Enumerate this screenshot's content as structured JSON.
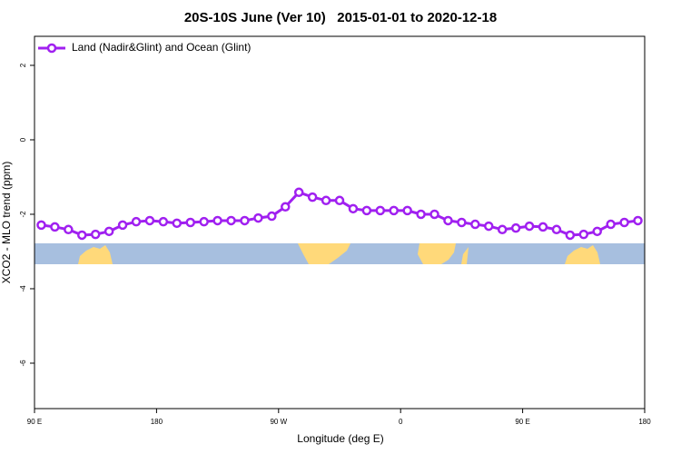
{
  "chart_data": {
    "type": "line",
    "title": "20S-10S June (Ver 10)   2015-01-01 to 2020-12-18",
    "x_label": "Longitude (deg E)",
    "y_label": "XCO2 - MLO trend (ppm)",
    "x": [
      95,
      105,
      115,
      125,
      135,
      145,
      155,
      165,
      175,
      185,
      195,
      205,
      215,
      225,
      235,
      245,
      255,
      265,
      275,
      285,
      295,
      305,
      315,
      325,
      335,
      345,
      355,
      365,
      375,
      385,
      395,
      405,
      415,
      425,
      435,
      445,
      455,
      465,
      475,
      485,
      495,
      505,
      515,
      525,
      535
    ],
    "series": [
      {
        "name": "Land (Nadir&Glint) and Ocean (Glint)",
        "color": "#a020f0",
        "values": [
          -2.29,
          -2.34,
          -2.41,
          -2.56,
          -2.54,
          -2.46,
          -2.29,
          -2.2,
          -2.17,
          -2.2,
          -2.24,
          -2.22,
          -2.2,
          -2.17,
          -2.17,
          -2.17,
          -2.1,
          -2.05,
          -1.8,
          -1.41,
          -1.54,
          -1.63,
          -1.63,
          -1.85,
          -1.9,
          -1.9,
          -1.9,
          -1.9,
          -2.0,
          -2.0,
          -2.17,
          -2.22,
          -2.27,
          -2.32,
          -2.41,
          -2.37,
          -2.32,
          -2.34,
          -2.41,
          -2.56,
          -2.54,
          -2.46,
          -2.27,
          -2.22,
          -2.17
        ]
      }
    ],
    "xlim": [
      90,
      540
    ],
    "xticks": [
      {
        "value": 90,
        "label": "90 E"
      },
      {
        "value": 180,
        "label": "180"
      },
      {
        "value": 270,
        "label": "90 W"
      },
      {
        "value": 360,
        "label": "0"
      },
      {
        "value": 450,
        "label": "90 E"
      },
      {
        "value": 540,
        "label": "180"
      }
    ],
    "ylim": [
      -7.22,
      2.78
    ],
    "yticks": [
      2,
      0,
      -2,
      -4,
      -6
    ],
    "legend": "top-left"
  }
}
